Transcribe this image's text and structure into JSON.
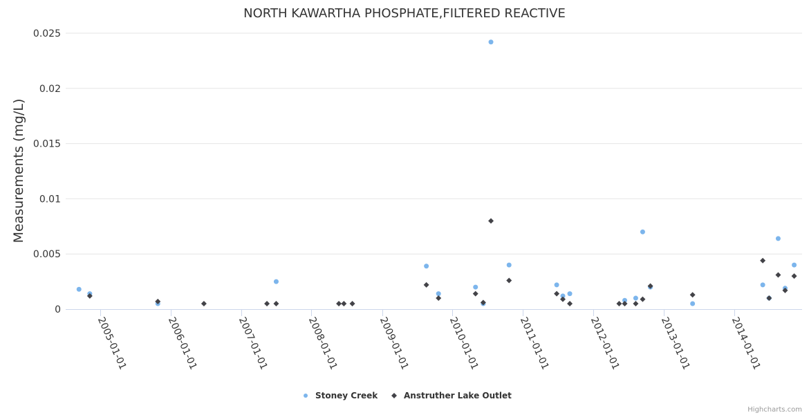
{
  "chart_data": {
    "type": "scatter",
    "title": "NORTH KAWARTHA PHOSPHATE,FILTERED REACTIVE",
    "xlabel": "",
    "ylabel": "Measurements (mg/L)",
    "ylim": [
      0,
      0.025
    ],
    "xlim": [
      "2004-07-05",
      "2014-12-20"
    ],
    "yticks": [
      0,
      0.005,
      0.01,
      0.015,
      0.02,
      0.025
    ],
    "ytick_labels": [
      "0",
      "0.005",
      "0.01",
      "0.015",
      "0.02",
      "0.025"
    ],
    "xticks": [
      "2005-01-01",
      "2006-01-01",
      "2007-01-01",
      "2008-01-01",
      "2009-01-01",
      "2010-01-01",
      "2011-01-01",
      "2012-01-01",
      "2013-01-01",
      "2014-01-01"
    ],
    "grid": true,
    "legend_position": "bottom-center",
    "series": [
      {
        "name": "Stoney Creek",
        "color": "#7cb5ec",
        "marker": "circle",
        "points": [
          [
            "2004-09-12",
            0.0018
          ],
          [
            "2004-11-07",
            0.0014
          ],
          [
            "2005-10-26",
            0.0005
          ],
          [
            "2007-07-02",
            0.0025
          ],
          [
            "2009-08-19",
            0.0039
          ],
          [
            "2009-10-21",
            0.0014
          ],
          [
            "2010-05-01",
            0.002
          ],
          [
            "2010-06-10",
            0.0005
          ],
          [
            "2010-07-20",
            0.0242
          ],
          [
            "2010-10-22",
            0.004
          ],
          [
            "2011-06-26",
            0.0022
          ],
          [
            "2011-07-28",
            0.0012
          ],
          [
            "2011-09-02",
            0.0014
          ],
          [
            "2012-06-13",
            0.0008
          ],
          [
            "2012-08-09",
            0.001
          ],
          [
            "2012-09-14",
            0.007
          ],
          [
            "2012-10-24",
            0.002
          ],
          [
            "2013-05-31",
            0.0005
          ],
          [
            "2014-05-30",
            0.0022
          ],
          [
            "2014-07-02",
            0.001
          ],
          [
            "2014-08-18",
            0.0064
          ],
          [
            "2014-09-23",
            0.0019
          ],
          [
            "2014-11-09",
            0.004
          ]
        ]
      },
      {
        "name": "Anstruther Lake Outlet",
        "color": "#434348",
        "marker": "diamond",
        "points": [
          [
            "2004-11-07",
            0.0012
          ],
          [
            "2005-10-26",
            0.0007
          ],
          [
            "2006-06-22",
            0.0005
          ],
          [
            "2007-05-15",
            0.0005
          ],
          [
            "2007-07-02",
            0.0005
          ],
          [
            "2008-05-22",
            0.0005
          ],
          [
            "2008-06-17",
            0.0005
          ],
          [
            "2008-07-31",
            0.0005
          ],
          [
            "2009-08-19",
            0.0022
          ],
          [
            "2009-10-21",
            0.001
          ],
          [
            "2010-05-01",
            0.0014
          ],
          [
            "2010-06-10",
            0.0006
          ],
          [
            "2010-07-20",
            0.008
          ],
          [
            "2010-10-22",
            0.0026
          ],
          [
            "2011-06-26",
            0.0014
          ],
          [
            "2011-07-28",
            0.0009
          ],
          [
            "2011-09-02",
            0.0005
          ],
          [
            "2012-05-15",
            0.0005
          ],
          [
            "2012-06-13",
            0.0005
          ],
          [
            "2012-08-09",
            0.0005
          ],
          [
            "2012-09-14",
            0.0009
          ],
          [
            "2012-10-24",
            0.0021
          ],
          [
            "2013-05-31",
            0.0013
          ],
          [
            "2014-05-30",
            0.0044
          ],
          [
            "2014-07-02",
            0.001
          ],
          [
            "2014-08-18",
            0.0031
          ],
          [
            "2014-09-23",
            0.0017
          ],
          [
            "2014-11-09",
            0.003
          ]
        ]
      }
    ]
  },
  "credits": "Highcharts.com"
}
